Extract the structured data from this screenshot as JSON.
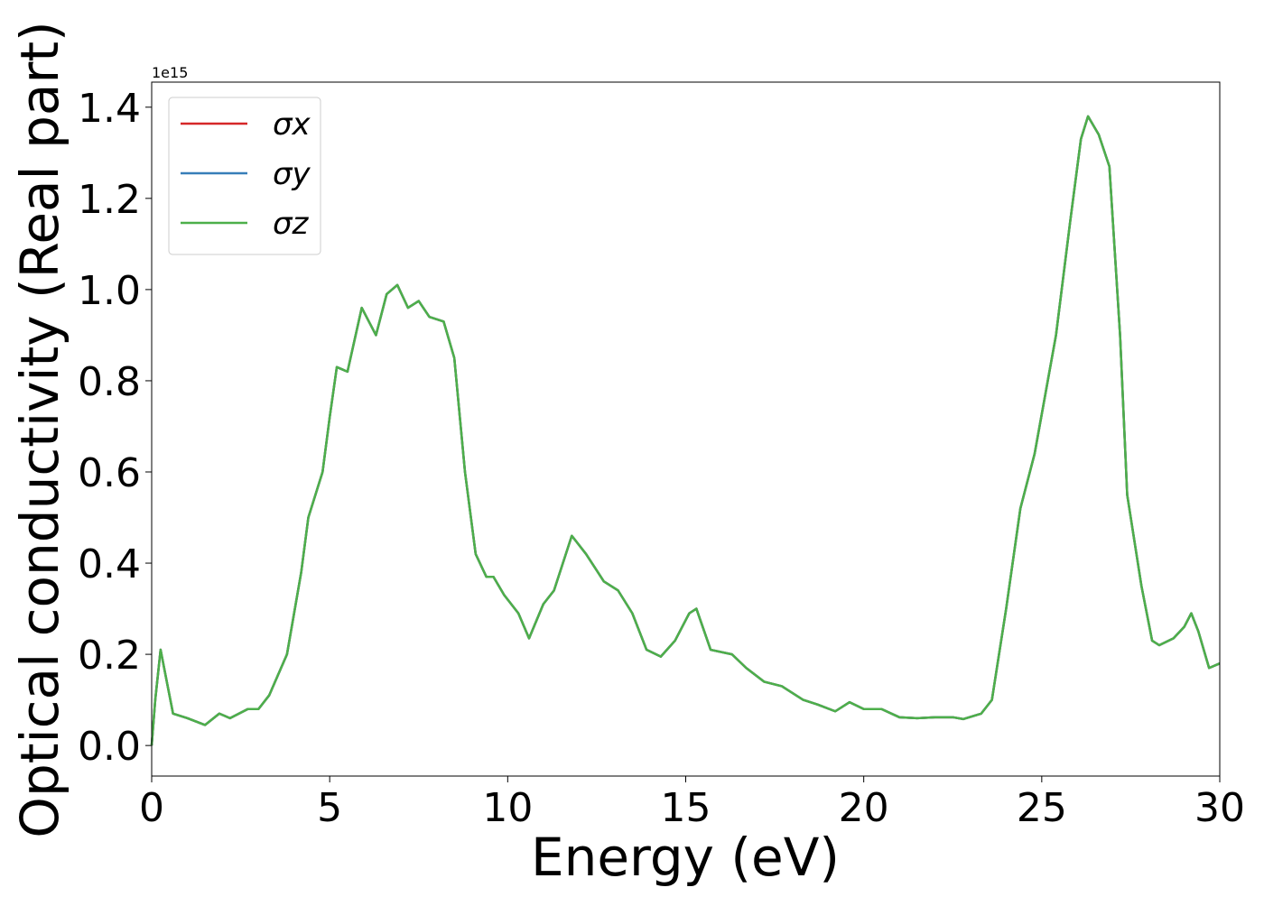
{
  "chart_data": {
    "type": "line",
    "xlabel": "Energy (eV)",
    "ylabel": "Optical conductivity (Real part)",
    "y_offset_label": "1e15",
    "x": [
      0,
      0.1,
      0.25,
      0.4,
      0.6,
      1.0,
      1.5,
      1.9,
      2.2,
      2.7,
      3.0,
      3.3,
      3.8,
      4.2,
      4.4,
      4.8,
      5.0,
      5.2,
      5.5,
      5.9,
      6.3,
      6.6,
      6.9,
      7.2,
      7.5,
      7.8,
      8.2,
      8.5,
      8.8,
      9.1,
      9.4,
      9.6,
      9.9,
      10.3,
      10.6,
      11.0,
      11.3,
      11.8,
      12.2,
      12.7,
      13.1,
      13.5,
      13.9,
      14.3,
      14.7,
      15.1,
      15.3,
      15.7,
      16.3,
      16.7,
      17.2,
      17.7,
      18.3,
      18.7,
      19.2,
      19.6,
      20.0,
      20.5,
      21.0,
      21.5,
      22.0,
      22.5,
      22.8,
      23.3,
      23.6,
      24.0,
      24.4,
      24.8,
      25.1,
      25.4,
      25.8,
      26.1,
      26.3,
      26.6,
      26.9,
      27.2,
      27.4,
      27.8,
      28.1,
      28.3,
      28.7,
      29.0,
      29.2,
      29.4,
      29.7,
      30.0
    ],
    "series": [
      {
        "name": "σx",
        "color": "#d62728",
        "values": [
          0.0,
          0.1,
          0.21,
          0.15,
          0.07,
          0.06,
          0.045,
          0.07,
          0.06,
          0.08,
          0.08,
          0.11,
          0.2,
          0.38,
          0.5,
          0.6,
          0.72,
          0.83,
          0.82,
          0.96,
          0.9,
          0.99,
          1.01,
          0.96,
          0.975,
          0.94,
          0.93,
          0.85,
          0.6,
          0.42,
          0.37,
          0.37,
          0.33,
          0.29,
          0.235,
          0.31,
          0.34,
          0.46,
          0.42,
          0.36,
          0.34,
          0.29,
          0.21,
          0.195,
          0.23,
          0.29,
          0.3,
          0.21,
          0.2,
          0.17,
          0.14,
          0.13,
          0.1,
          0.09,
          0.075,
          0.095,
          0.08,
          0.08,
          0.062,
          0.06,
          0.062,
          0.062,
          0.058,
          0.07,
          0.1,
          0.3,
          0.52,
          0.64,
          0.77,
          0.9,
          1.15,
          1.33,
          1.38,
          1.34,
          1.27,
          0.9,
          0.55,
          0.35,
          0.23,
          0.22,
          0.235,
          0.26,
          0.29,
          0.25,
          0.17,
          0.18
        ]
      },
      {
        "name": "σy",
        "color": "#377eb8",
        "values": [
          0.0,
          0.1,
          0.21,
          0.15,
          0.07,
          0.06,
          0.045,
          0.07,
          0.06,
          0.08,
          0.08,
          0.11,
          0.2,
          0.38,
          0.5,
          0.6,
          0.72,
          0.83,
          0.82,
          0.96,
          0.9,
          0.99,
          1.01,
          0.96,
          0.975,
          0.94,
          0.93,
          0.85,
          0.6,
          0.42,
          0.37,
          0.37,
          0.33,
          0.29,
          0.235,
          0.31,
          0.34,
          0.46,
          0.42,
          0.36,
          0.34,
          0.29,
          0.21,
          0.195,
          0.23,
          0.29,
          0.3,
          0.21,
          0.2,
          0.17,
          0.14,
          0.13,
          0.1,
          0.09,
          0.075,
          0.095,
          0.08,
          0.08,
          0.062,
          0.06,
          0.062,
          0.062,
          0.058,
          0.07,
          0.1,
          0.3,
          0.52,
          0.64,
          0.77,
          0.9,
          1.15,
          1.33,
          1.38,
          1.34,
          1.27,
          0.9,
          0.55,
          0.35,
          0.23,
          0.22,
          0.235,
          0.26,
          0.29,
          0.25,
          0.17,
          0.18
        ]
      },
      {
        "name": "σz",
        "color": "#4daf4a",
        "values": [
          0.0,
          0.1,
          0.21,
          0.15,
          0.07,
          0.06,
          0.045,
          0.07,
          0.06,
          0.08,
          0.08,
          0.11,
          0.2,
          0.38,
          0.5,
          0.6,
          0.72,
          0.83,
          0.82,
          0.96,
          0.9,
          0.99,
          1.01,
          0.96,
          0.975,
          0.94,
          0.93,
          0.85,
          0.6,
          0.42,
          0.37,
          0.37,
          0.33,
          0.29,
          0.235,
          0.31,
          0.34,
          0.46,
          0.42,
          0.36,
          0.34,
          0.29,
          0.21,
          0.195,
          0.23,
          0.29,
          0.3,
          0.21,
          0.2,
          0.17,
          0.14,
          0.13,
          0.1,
          0.09,
          0.075,
          0.095,
          0.08,
          0.08,
          0.062,
          0.06,
          0.062,
          0.062,
          0.058,
          0.07,
          0.1,
          0.3,
          0.52,
          0.64,
          0.77,
          0.9,
          1.15,
          1.33,
          1.38,
          1.34,
          1.27,
          0.9,
          0.55,
          0.35,
          0.23,
          0.22,
          0.235,
          0.26,
          0.29,
          0.25,
          0.17,
          0.18
        ]
      }
    ],
    "xlim": [
      0,
      30
    ],
    "xticks": [
      0,
      5,
      10,
      15,
      20,
      25,
      30
    ],
    "ylim": [
      -0.067,
      1.455
    ],
    "yticks": [
      {
        "value": 0,
        "label": "0.0"
      },
      0.2,
      0.4,
      0.6,
      0.8,
      {
        "value": 1,
        "label": "1.0"
      },
      1.2,
      1.4
    ],
    "legend": "upper left",
    "grid": false
  }
}
